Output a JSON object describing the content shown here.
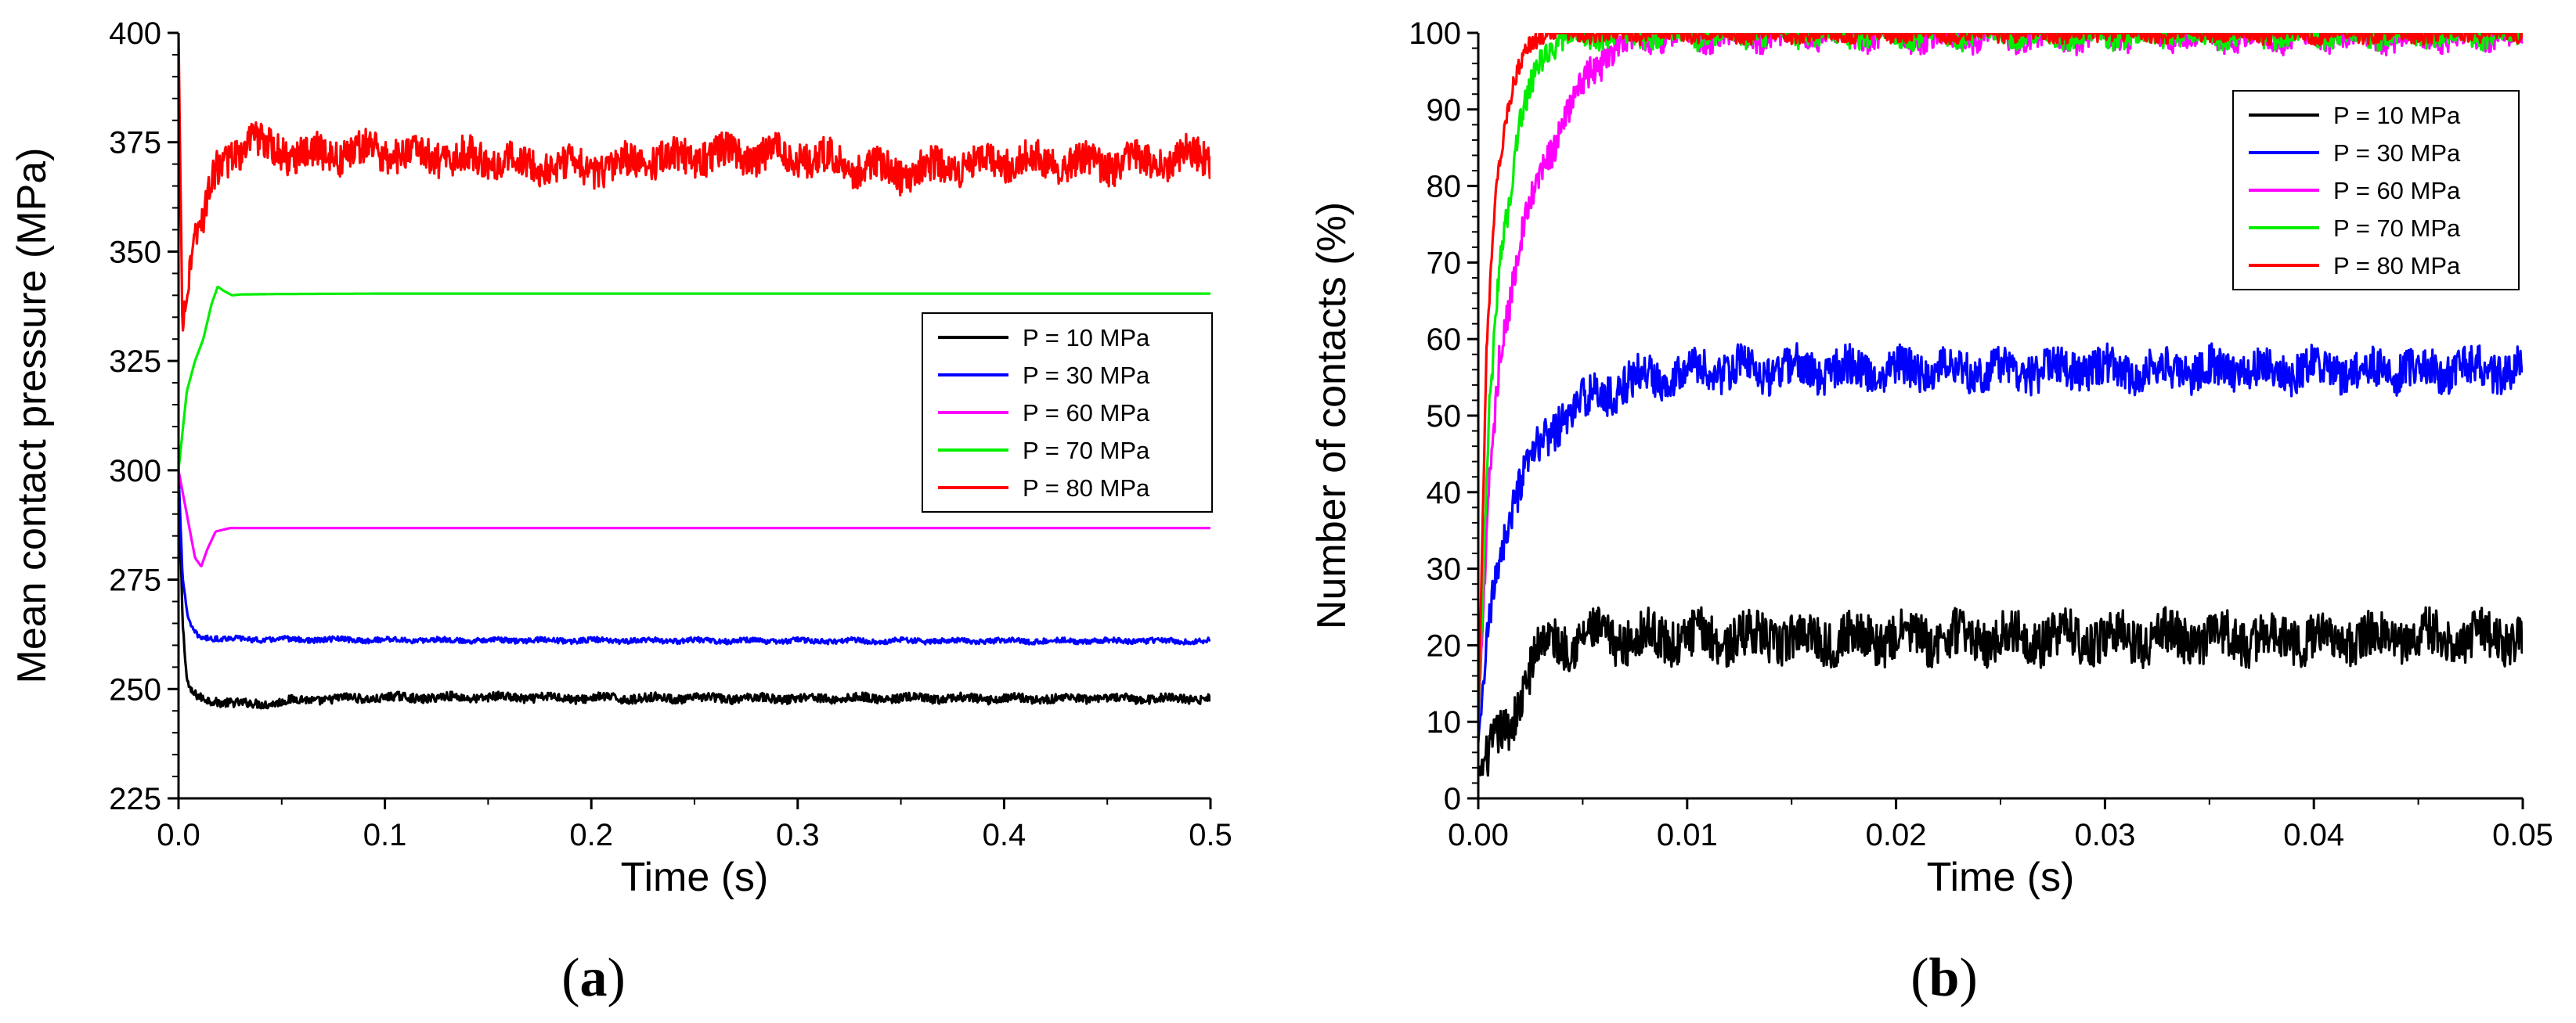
{
  "figure": {
    "panel_a_paren_open": "(",
    "panel_a_letter": "a",
    "panel_a_paren_close": ")",
    "panel_b_paren_open": "(",
    "panel_b_letter": "b",
    "panel_b_paren_close": ")"
  },
  "colors": {
    "P10": "#000000",
    "P30": "#0000ff",
    "P60": "#ff00ff",
    "P70": "#00ee00",
    "P80": "#ff0000"
  },
  "chart_data": [
    {
      "id": "a",
      "type": "line",
      "title": "",
      "xlabel": "Time (s)",
      "ylabel": "Mean contact pressure (MPa)",
      "xlim": [
        0,
        0.5
      ],
      "ylim": [
        225,
        400
      ],
      "xticks": [
        0.0,
        0.1,
        0.2,
        0.3,
        0.4,
        0.5
      ],
      "xtick_labels": [
        "0.0",
        "0.1",
        "0.2",
        "0.3",
        "0.4",
        "0.5"
      ],
      "yticks": [
        225,
        250,
        275,
        300,
        325,
        350,
        375,
        400
      ],
      "ytick_labels": [
        "225",
        "250",
        "275",
        "300",
        "325",
        "350",
        "375",
        "400"
      ],
      "legend_position": "center-right",
      "series": [
        {
          "name": "P = 10 MPa",
          "color": "#000000",
          "x": [
            0,
            0.002,
            0.004,
            0.006,
            0.01,
            0.02,
            0.03,
            0.04,
            0.06,
            0.08,
            0.1,
            0.15,
            0.2,
            0.3,
            0.4,
            0.5
          ],
          "y": [
            300,
            265,
            252,
            249,
            248,
            247.2,
            246.5,
            246.7,
            247.5,
            247.8,
            248,
            248.1,
            247.9,
            247.9,
            247.8,
            247.8
          ],
          "noise": 1.0
        },
        {
          "name": "P = 30 MPa",
          "color": "#0000ff",
          "x": [
            0,
            0.002,
            0.004,
            0.006,
            0.01,
            0.02,
            0.05,
            0.1,
            0.2,
            0.3,
            0.4,
            0.5
          ],
          "y": [
            300,
            275,
            268,
            264,
            262,
            261.5,
            261.3,
            261.2,
            261.1,
            261,
            261,
            261
          ],
          "noise": 0.6
        },
        {
          "name": "P = 60 MPa",
          "color": "#ff00ff",
          "x": [
            0,
            0.004,
            0.008,
            0.011,
            0.014,
            0.018,
            0.025,
            0.05,
            0.1,
            0.2,
            0.3,
            0.4,
            0.5
          ],
          "y": [
            300,
            290,
            280,
            278,
            282,
            286,
            286.8,
            286.8,
            286.8,
            286.8,
            286.8,
            286.8,
            286.8
          ],
          "noise": 0
        },
        {
          "name": "P = 70 MPa",
          "color": "#00ee00",
          "x": [
            0,
            0.004,
            0.008,
            0.012,
            0.016,
            0.019,
            0.022,
            0.026,
            0.03,
            0.05,
            0.1,
            0.2,
            0.3,
            0.4,
            0.5
          ],
          "y": [
            300,
            318,
            325,
            330,
            338,
            342,
            341,
            340,
            340.2,
            340.3,
            340.4,
            340.4,
            340.4,
            340.4,
            340.4
          ],
          "noise": 0
        },
        {
          "name": "P = 80 MPa",
          "color": "#ff0000",
          "x": [
            0,
            0.002,
            0.003,
            0.005,
            0.008,
            0.012,
            0.018,
            0.025,
            0.035,
            0.06,
            0.1,
            0.15,
            0.2,
            0.25,
            0.3,
            0.35,
            0.4,
            0.45,
            0.5
          ],
          "y": [
            400,
            330,
            340,
            345,
            355,
            357,
            368,
            372,
            375,
            372,
            373,
            371,
            369,
            372,
            372,
            368,
            371,
            370,
            372
          ],
          "noise": 4.0
        }
      ]
    },
    {
      "id": "b",
      "type": "line",
      "title": "",
      "xlabel": "Time (s)",
      "ylabel": "Number of contacts (%)",
      "xlim": [
        0,
        0.05
      ],
      "ylim": [
        0,
        100
      ],
      "xticks": [
        0.0,
        0.01,
        0.02,
        0.03,
        0.04,
        0.05
      ],
      "xtick_labels": [
        "0.00",
        "0.01",
        "0.02",
        "0.03",
        "0.04",
        "0.05"
      ],
      "yticks": [
        0,
        10,
        20,
        30,
        40,
        50,
        60,
        70,
        80,
        90,
        100
      ],
      "ytick_labels": [
        "0",
        "10",
        "20",
        "30",
        "40",
        "50",
        "60",
        "70",
        "80",
        "90",
        "100"
      ],
      "legend_position": "top-right",
      "series": [
        {
          "name": "P = 10 MPa",
          "color": "#000000",
          "x": [
            0,
            0.0005,
            0.001,
            0.0015,
            0.002,
            0.0025,
            0.003,
            0.005,
            0.01,
            0.02,
            0.03,
            0.04,
            0.05
          ],
          "y": [
            3,
            5,
            8,
            10,
            13,
            17,
            20,
            21,
            21,
            21,
            21,
            21,
            21
          ],
          "noise": 3.0
        },
        {
          "name": "P = 30 MPa",
          "color": "#0000ff",
          "x": [
            0,
            0.0005,
            0.001,
            0.0015,
            0.002,
            0.003,
            0.004,
            0.006,
            0.008,
            0.01,
            0.02,
            0.03,
            0.04,
            0.05
          ],
          "y": [
            7,
            22,
            32,
            37,
            41,
            46,
            50,
            53,
            55,
            56,
            56,
            56,
            56,
            56
          ],
          "noise": 2.6
        },
        {
          "name": "P = 60 MPa",
          "color": "#ff00ff",
          "x": [
            0,
            0.0005,
            0.001,
            0.0015,
            0.002,
            0.003,
            0.004,
            0.005,
            0.006,
            0.007,
            0.008,
            0.05
          ],
          "y": [
            10,
            40,
            58,
            65,
            72,
            82,
            88,
            93,
            97,
            99,
            100,
            100
          ],
          "noise": 2.2
        },
        {
          "name": "P = 70 MPa",
          "color": "#00ee00",
          "x": [
            0,
            0.0005,
            0.001,
            0.0015,
            0.002,
            0.0025,
            0.003,
            0.004,
            0.005,
            0.006,
            0.05
          ],
          "y": [
            10,
            50,
            70,
            78,
            88,
            93,
            97,
            99,
            100,
            100,
            100
          ],
          "noise": 1.8
        },
        {
          "name": "P = 80 MPa",
          "color": "#ff0000",
          "x": [
            0,
            0.0004,
            0.0008,
            0.0012,
            0.0016,
            0.002,
            0.0025,
            0.003,
            0.004,
            0.05
          ],
          "y": [
            10,
            60,
            78,
            86,
            92,
            96,
            99,
            100,
            100,
            100
          ],
          "noise": 1.2
        }
      ]
    }
  ]
}
